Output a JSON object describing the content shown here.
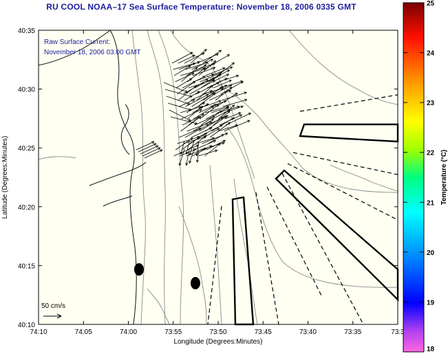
{
  "title": "RU COOL  NOAA–17  Sea Surface Temperature:  November 18, 2006 0335 GMT",
  "overlay": {
    "line1": "Raw Surface Current:",
    "line2": "November 18, 2006 03:00 GMT",
    "scale_label": "50 cm/s"
  },
  "axes": {
    "xlabel": "Longitude (Degrees:Minutes)",
    "ylabel": "Latitude (Degrees:Minutes)",
    "xticks": [
      "74:10",
      "74:05",
      "74:00",
      "73:55",
      "73:50",
      "73:45",
      "73:40",
      "73:35",
      "73:3"
    ],
    "yticks": [
      "40:35",
      "40:30",
      "40:25",
      "40:20",
      "40:15",
      "40:10"
    ]
  },
  "colorbar": {
    "label": "Temperature (°C)",
    "ticks": [
      "25",
      "24",
      "23",
      "22",
      "21",
      "20",
      "19",
      "18"
    ],
    "min": 18,
    "max": 25,
    "colors": [
      "#ff66e0",
      "#a020f0",
      "#0000ff",
      "#0080ff",
      "#00ffff",
      "#00ff80",
      "#80ff00",
      "#ffff00",
      "#ffa000",
      "#ff4000",
      "#ff0000",
      "#800000"
    ]
  },
  "colors": {
    "background": "#fffff0",
    "title": "#1c1c9c",
    "contour": "#888888"
  }
}
